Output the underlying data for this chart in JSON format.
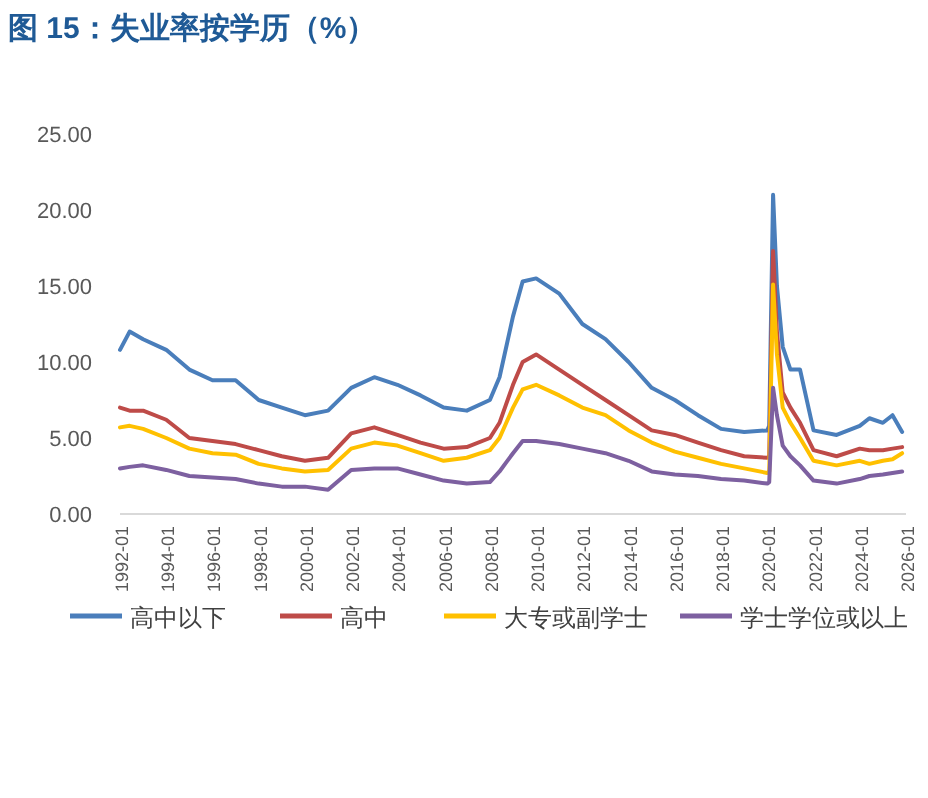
{
  "chart_data": {
    "type": "line",
    "title": "图 15：失业率按学历（%）",
    "x": [
      "1992-01",
      "1992-06",
      "1993-01",
      "1994-01",
      "1995-01",
      "1996-01",
      "1997-01",
      "1998-01",
      "1999-01",
      "2000-01",
      "2001-01",
      "2002-01",
      "2003-01",
      "2004-01",
      "2005-01",
      "2006-01",
      "2007-01",
      "2008-01",
      "2008-06",
      "2009-01",
      "2009-06",
      "2010-01",
      "2011-01",
      "2012-01",
      "2013-01",
      "2014-01",
      "2015-01",
      "2016-01",
      "2017-01",
      "2018-01",
      "2019-01",
      "2020-01",
      "2020-02",
      "2020-04",
      "2020-06",
      "2020-09",
      "2021-01",
      "2021-06",
      "2022-01",
      "2023-01",
      "2024-01",
      "2024-06",
      "2025-01",
      "2025-06",
      "2025-11"
    ],
    "series": [
      {
        "name": "高中以下",
        "color": "#4a7ebb",
        "values": [
          10.8,
          12.0,
          11.5,
          10.8,
          9.5,
          8.8,
          8.8,
          7.5,
          7.0,
          6.5,
          6.8,
          8.3,
          9.0,
          8.5,
          7.8,
          7.0,
          6.8,
          7.5,
          9.0,
          13.0,
          15.3,
          15.5,
          14.5,
          12.5,
          11.5,
          10.0,
          8.3,
          7.5,
          6.5,
          5.6,
          5.4,
          5.5,
          5.8,
          21.0,
          15.0,
          11.0,
          9.5,
          9.5,
          5.5,
          5.2,
          5.8,
          6.3,
          6.0,
          6.5,
          5.4
        ]
      },
      {
        "name": "高中",
        "color": "#be4b48",
        "values": [
          7.0,
          6.8,
          6.8,
          6.2,
          5.0,
          4.8,
          4.6,
          4.2,
          3.8,
          3.5,
          3.7,
          5.3,
          5.7,
          5.2,
          4.7,
          4.3,
          4.4,
          5.0,
          6.0,
          8.5,
          10.0,
          10.5,
          9.5,
          8.5,
          7.5,
          6.5,
          5.5,
          5.2,
          4.7,
          4.2,
          3.8,
          3.7,
          3.8,
          17.3,
          12.0,
          8.0,
          7.0,
          6.0,
          4.2,
          3.8,
          4.3,
          4.2,
          4.2,
          4.3,
          4.4
        ]
      },
      {
        "name": "大专或副学士",
        "color": "#ffc000",
        "values": [
          5.7,
          5.8,
          5.6,
          5.0,
          4.3,
          4.0,
          3.9,
          3.3,
          3.0,
          2.8,
          2.9,
          4.3,
          4.7,
          4.5,
          4.0,
          3.5,
          3.7,
          4.2,
          5.0,
          7.0,
          8.2,
          8.5,
          7.8,
          7.0,
          6.5,
          5.5,
          4.7,
          4.1,
          3.7,
          3.3,
          3.0,
          2.7,
          2.8,
          15.1,
          10.5,
          7.0,
          6.0,
          5.0,
          3.5,
          3.2,
          3.5,
          3.3,
          3.5,
          3.6,
          4.0
        ]
      },
      {
        "name": "学士学位或以上",
        "color": "#7d60a0",
        "values": [
          3.0,
          3.1,
          3.2,
          2.9,
          2.5,
          2.4,
          2.3,
          2.0,
          1.8,
          1.8,
          1.6,
          2.9,
          3.0,
          3.0,
          2.6,
          2.2,
          2.0,
          2.1,
          2.8,
          4.0,
          4.8,
          4.8,
          4.6,
          4.3,
          4.0,
          3.5,
          2.8,
          2.6,
          2.5,
          2.3,
          2.2,
          2.0,
          2.1,
          8.3,
          6.5,
          4.5,
          3.8,
          3.2,
          2.2,
          2.0,
          2.3,
          2.5,
          2.6,
          2.7,
          2.8
        ]
      }
    ],
    "xlim": [
      "1992-01",
      "2026-01"
    ],
    "xticks": [
      {
        "value": "1992-01",
        "label": "1992-01"
      },
      {
        "value": "1994-01",
        "label": "1994-01"
      },
      {
        "value": "1996-01",
        "label": "1996-01"
      },
      {
        "value": "1998-01",
        "label": "1998-01"
      },
      {
        "value": "2000-01",
        "label": "2000-01"
      },
      {
        "value": "2002-01",
        "label": "2002-01"
      },
      {
        "value": "2004-01",
        "label": "2004-01"
      },
      {
        "value": "2006-01",
        "label": "2006-01"
      },
      {
        "value": "2008-01",
        "label": "2008-01"
      },
      {
        "value": "2010-01",
        "label": "2010-01"
      },
      {
        "value": "2012-01",
        "label": "2012-01"
      },
      {
        "value": "2014-01",
        "label": "2014-01"
      },
      {
        "value": "2016-01",
        "label": "2016-01"
      },
      {
        "value": "2018-01",
        "label": "2018-01"
      },
      {
        "value": "2020-01",
        "label": "2020-01"
      },
      {
        "value": "2022-01",
        "label": "2022-01"
      },
      {
        "value": "2024-01",
        "label": "2024-01"
      },
      {
        "value": "2026-01",
        "label": "2026-01"
      }
    ],
    "ylim": [
      0,
      25
    ],
    "yticks": [
      {
        "value": 0,
        "label": "0.00"
      },
      {
        "value": 5,
        "label": "5.00"
      },
      {
        "value": 10,
        "label": "10.00"
      },
      {
        "value": 15,
        "label": "15.00"
      },
      {
        "value": 20,
        "label": "20.00"
      },
      {
        "value": 25,
        "label": "25.00"
      }
    ],
    "legend": "bottom",
    "marker": "none",
    "line_style": "solid"
  }
}
